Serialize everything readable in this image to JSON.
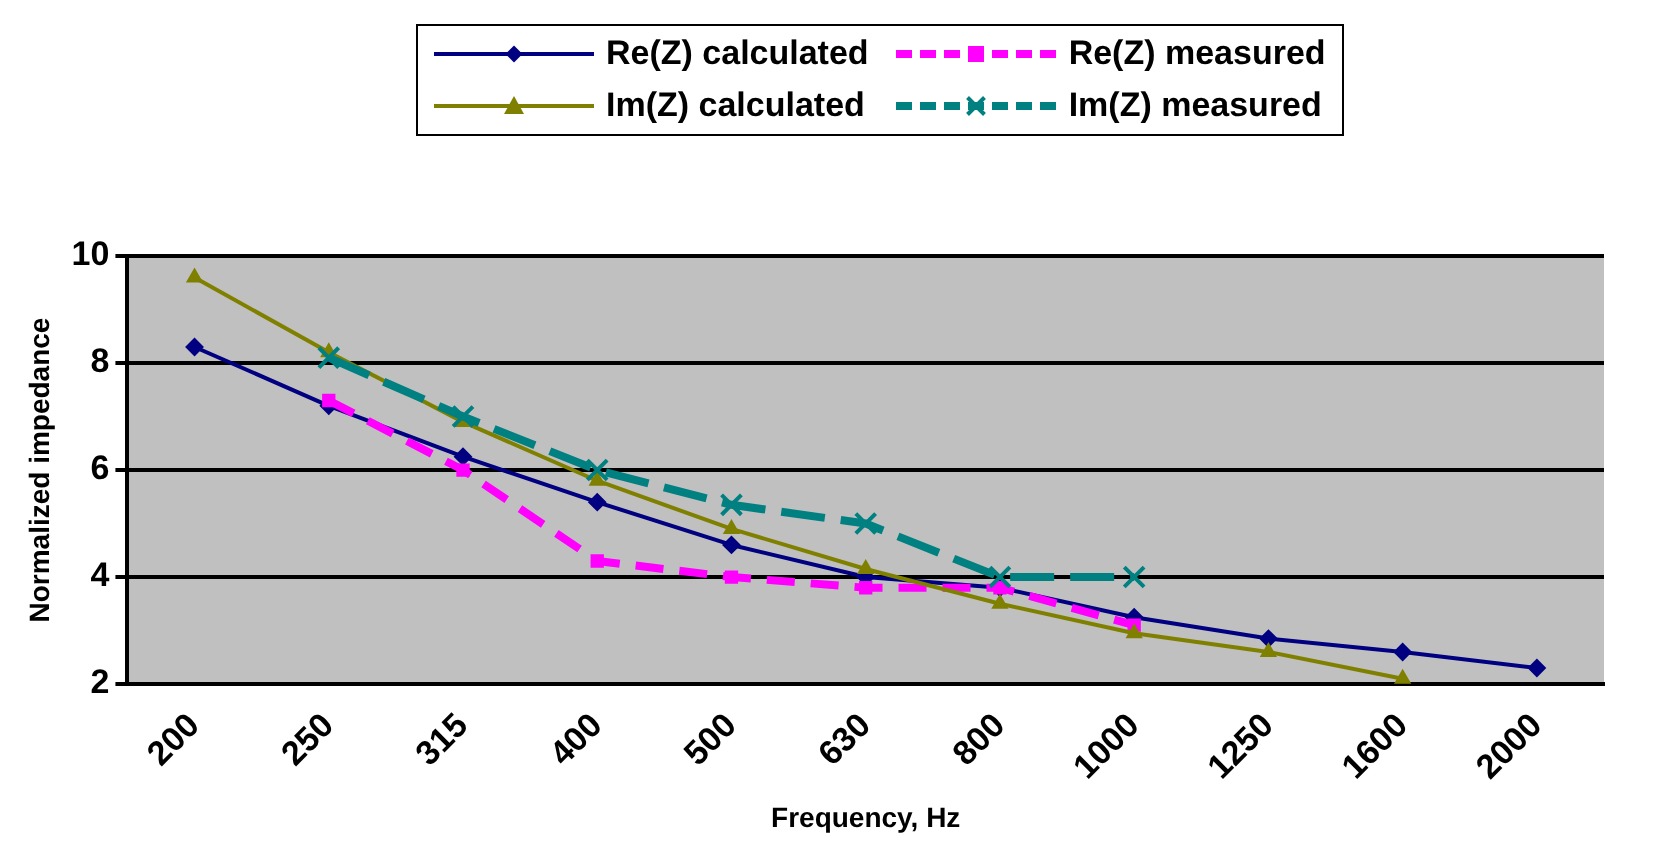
{
  "chart_data": {
    "type": "line",
    "xlabel": "Frequency, Hz",
    "ylabel": "Normalized impedance",
    "categories": [
      "200",
      "250",
      "315",
      "400",
      "500",
      "630",
      "800",
      "1000",
      "1250",
      "1600",
      "2000"
    ],
    "series": [
      {
        "name": "Re(Z) calculated",
        "color": "#000080",
        "marker": "diamond",
        "line_style": "solid",
        "values": [
          8.3,
          7.2,
          6.25,
          5.4,
          4.6,
          4.0,
          3.8,
          3.25,
          2.85,
          2.6,
          2.3
        ]
      },
      {
        "name": "Re(Z) measured",
        "color": "#ff00ff",
        "marker": "square",
        "line_style": "dashed",
        "values": [
          null,
          7.3,
          6.0,
          4.3,
          4.0,
          3.8,
          3.8,
          3.1,
          null,
          null,
          null
        ]
      },
      {
        "name": "Im(Z) calculated",
        "color": "#808000",
        "marker": "triangle",
        "line_style": "solid",
        "values": [
          9.6,
          8.2,
          6.9,
          5.8,
          4.9,
          4.15,
          3.5,
          2.95,
          2.6,
          2.1,
          null
        ]
      },
      {
        "name": "Im(Z) measured",
        "color": "#008080",
        "marker": "cross",
        "line_style": "dashed",
        "values": [
          null,
          8.1,
          7.0,
          6.0,
          5.35,
          5.0,
          4.0,
          4.0,
          null,
          null,
          null
        ]
      }
    ],
    "ylim": [
      2,
      10
    ],
    "yticks": [
      2,
      4,
      6,
      8,
      10
    ],
    "grid": "y",
    "legend": "top"
  }
}
